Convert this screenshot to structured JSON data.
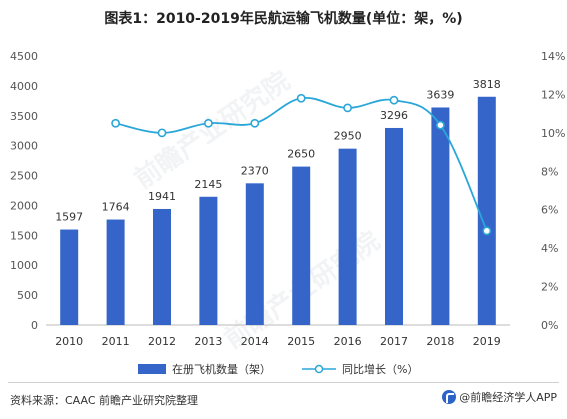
{
  "title": "图表1：2010-2019年民航运输飞机数量(单位：架，%)",
  "chart_data": {
    "type": "bar",
    "categories": [
      "2010",
      "2011",
      "2012",
      "2013",
      "2014",
      "2015",
      "2016",
      "2017",
      "2018",
      "2019"
    ],
    "series": [
      {
        "name": "在册飞机数量（架）",
        "type": "bar",
        "axis": "left",
        "color": "#3565c8",
        "values": [
          1597,
          1764,
          1941,
          2145,
          2370,
          2650,
          2950,
          3296,
          3639,
          3818
        ]
      },
      {
        "name": "同比增长（%）",
        "type": "line",
        "axis": "right",
        "color": "#2aa7d8",
        "values": [
          null,
          10.5,
          10.0,
          10.5,
          10.5,
          11.8,
          11.3,
          11.7,
          10.4,
          4.9
        ]
      }
    ],
    "left_axis": {
      "min": 0,
      "max": 4500,
      "step": 500,
      "ticks": [
        "0",
        "500",
        "1000",
        "1500",
        "2000",
        "2500",
        "3000",
        "3500",
        "4000",
        "4500"
      ]
    },
    "right_axis": {
      "min": 0,
      "max": 14,
      "step": 2,
      "ticks": [
        "0%",
        "2%",
        "4%",
        "6%",
        "8%",
        "10%",
        "12%",
        "14%"
      ]
    },
    "grid": false,
    "legend_position": "bottom"
  },
  "legend": {
    "bar_label": "在册飞机数量（架）",
    "line_label": "同比增长（%）"
  },
  "source": "资料来源：CAAC 前瞻产业研究院整理",
  "logo_text": "@前瞻经济学人APP",
  "watermark": "前瞻产业研究院"
}
